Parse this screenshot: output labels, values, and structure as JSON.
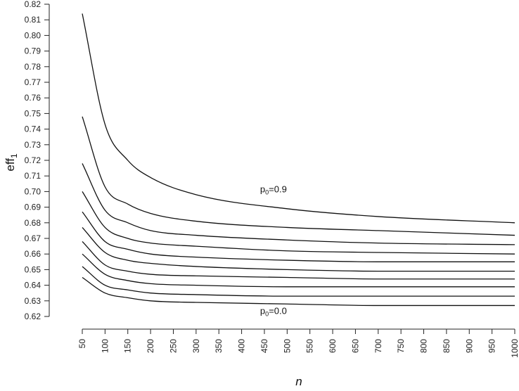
{
  "chart_data": {
    "type": "line",
    "xlabel": "n",
    "ylabel": {
      "base": "eff",
      "sub": "1"
    },
    "xlim": [
      50,
      1000
    ],
    "ylim": [
      0.62,
      0.82
    ],
    "x_ticks": [
      50,
      100,
      150,
      200,
      250,
      300,
      350,
      400,
      450,
      500,
      550,
      600,
      650,
      700,
      750,
      800,
      850,
      900,
      950,
      1000
    ],
    "y_ticks": [
      0.62,
      0.63,
      0.64,
      0.65,
      0.66,
      0.67,
      0.68,
      0.69,
      0.7,
      0.71,
      0.72,
      0.73,
      0.74,
      0.75,
      0.76,
      0.77,
      0.78,
      0.79,
      0.8,
      0.81,
      0.82
    ],
    "x": [
      50,
      100,
      150,
      200,
      300,
      500,
      700,
      1000
    ],
    "series": [
      {
        "values": [
          0.645,
          0.635,
          0.632,
          0.63,
          0.629,
          0.628,
          0.627,
          0.627
        ]
      },
      {
        "values": [
          0.652,
          0.64,
          0.637,
          0.635,
          0.634,
          0.633,
          0.633,
          0.633
        ]
      },
      {
        "values": [
          0.66,
          0.647,
          0.643,
          0.641,
          0.64,
          0.639,
          0.639,
          0.639
        ]
      },
      {
        "values": [
          0.668,
          0.653,
          0.649,
          0.647,
          0.646,
          0.645,
          0.644,
          0.644
        ]
      },
      {
        "values": [
          0.677,
          0.661,
          0.656,
          0.654,
          0.652,
          0.65,
          0.649,
          0.649
        ]
      },
      {
        "values": [
          0.687,
          0.668,
          0.663,
          0.66,
          0.658,
          0.656,
          0.655,
          0.655
        ]
      },
      {
        "values": [
          0.7,
          0.677,
          0.67,
          0.667,
          0.665,
          0.662,
          0.661,
          0.66
        ]
      },
      {
        "values": [
          0.718,
          0.688,
          0.68,
          0.675,
          0.672,
          0.669,
          0.667,
          0.666
        ]
      },
      {
        "values": [
          0.748,
          0.703,
          0.692,
          0.686,
          0.681,
          0.677,
          0.675,
          0.672
        ]
      },
      {
        "values": [
          0.814,
          0.743,
          0.72,
          0.709,
          0.698,
          0.689,
          0.684,
          0.68
        ]
      }
    ],
    "annotations": [
      {
        "base": "p",
        "sub": "0",
        "rest": "=0.9",
        "x": 470,
        "y": 0.6995
      },
      {
        "base": "p",
        "sub": "0",
        "rest": "=0.0",
        "x": 470,
        "y": 0.6215
      }
    ]
  }
}
